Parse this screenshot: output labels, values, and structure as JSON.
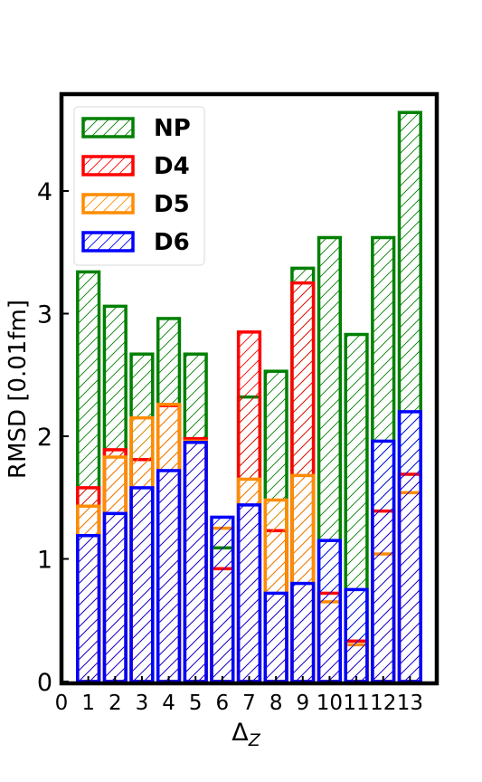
{
  "chart_data": {
    "type": "bar",
    "xlabel": "Δ",
    "xlabel_sub": "Z",
    "ylabel": "RMSD [0.01fm]",
    "x_ticks": [
      "0",
      "1",
      "2",
      "3",
      "4",
      "5",
      "6",
      "7",
      "8",
      "9",
      "10",
      "11",
      "12",
      "13"
    ],
    "y_ticks": [
      "0",
      "1",
      "2",
      "3",
      "4"
    ],
    "xlim": [
      0,
      14
    ],
    "ylim": [
      0,
      4.8
    ],
    "categories": [
      1,
      2,
      3,
      4,
      5,
      6,
      7,
      8,
      9,
      10,
      11,
      12,
      13
    ],
    "bar_hatch": "diagonal",
    "legend_position": "upper left",
    "series": [
      {
        "name": "NP",
        "color": "#008000",
        "values": [
          3.34,
          3.06,
          2.67,
          2.96,
          2.67,
          1.09,
          2.32,
          2.53,
          3.37,
          3.62,
          2.83,
          3.62,
          4.64
        ]
      },
      {
        "name": "D4",
        "color": "#ff0000",
        "values": [
          1.58,
          1.89,
          1.81,
          2.25,
          1.98,
          0.92,
          2.85,
          1.23,
          3.25,
          0.72,
          0.33,
          1.39,
          1.69
        ]
      },
      {
        "name": "D5",
        "color": "#ff8c00",
        "values": [
          1.43,
          1.83,
          2.15,
          2.26,
          1.96,
          1.25,
          1.65,
          1.48,
          1.68,
          0.65,
          0.3,
          1.04,
          1.54
        ]
      },
      {
        "name": "D6",
        "color": "#0000ff",
        "values": [
          1.19,
          1.37,
          1.58,
          1.72,
          1.95,
          1.34,
          1.44,
          0.72,
          0.8,
          1.15,
          0.75,
          1.96,
          2.2
        ]
      }
    ]
  }
}
